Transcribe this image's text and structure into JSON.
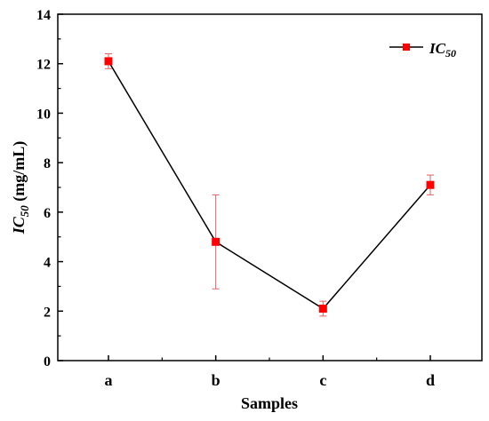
{
  "chart_data": {
    "type": "line",
    "categories": [
      "a",
      "b",
      "c",
      "d"
    ],
    "series": [
      {
        "name_main": "IC",
        "name_sub": "50",
        "values": [
          12.1,
          4.8,
          2.1,
          7.1
        ],
        "error": [
          0.3,
          1.9,
          0.3,
          0.4
        ],
        "marker": "square",
        "line_color": "#000000",
        "marker_color": "#ff0000",
        "error_color": "#e06060"
      }
    ],
    "xlabel": "Samples",
    "ylabel_main": "IC",
    "ylabel_sub": "50",
    "ylabel_unit": " (mg/mL)",
    "ylim": [
      0,
      14
    ],
    "yticks": [
      "0",
      "2",
      "4",
      "6",
      "8",
      "10",
      "12",
      "14"
    ],
    "grid": false,
    "legend_position": "top-right"
  }
}
